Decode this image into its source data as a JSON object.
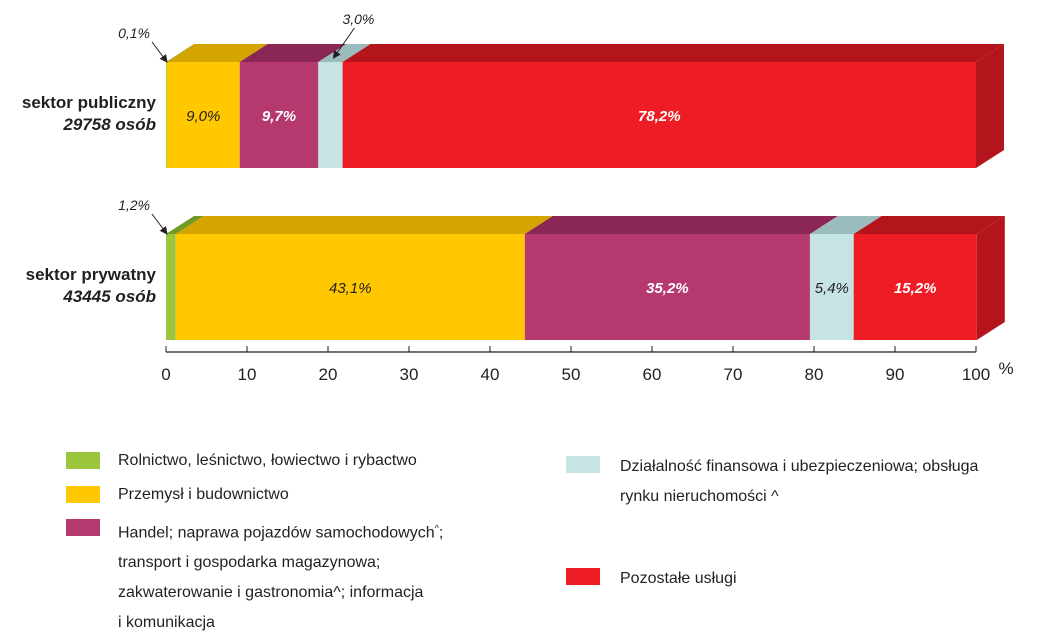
{
  "chart_data": {
    "type": "bar",
    "orientation": "horizontal",
    "stacked": true,
    "style": "3d",
    "x_range": [
      0,
      100
    ],
    "x_ticks": [
      "0",
      "10",
      "20",
      "30",
      "40",
      "50",
      "60",
      "70",
      "80",
      "90",
      "100"
    ],
    "x_unit": "%",
    "categories": [
      {
        "label": "sektor publiczny",
        "sublabel": "29758 osób"
      },
      {
        "label": "sektor prywatny",
        "sublabel": "43445 osób"
      }
    ],
    "series": [
      {
        "name": "Rolnictwo, leśnictwo, łowiectwo i rybactwo",
        "color": "#9bc53d",
        "side_color": "#6f9a25",
        "values": [
          0.1,
          1.2
        ],
        "labels": [
          "0,1%",
          "1,2%"
        ]
      },
      {
        "name": "Przemysł i budownictwo",
        "color": "#ffc800",
        "side_color": "#d4a500",
        "values": [
          9.0,
          43.1
        ],
        "labels": [
          "9,0%",
          "43,1%"
        ]
      },
      {
        "name": "Handel; naprawa pojazdów samochodowych; transport i gospodarka magazynowa; zakwaterowanie i gastronomia; informacja i komunikacja",
        "color": "#b5396f",
        "side_color": "#8a2754",
        "values": [
          9.7,
          35.2
        ],
        "labels": [
          "9,7%",
          "35,2%"
        ]
      },
      {
        "name": "Działalność finansowa i ubezpieczeniowa; obsługa rynku nieruchomości",
        "color": "#c6e4e4",
        "side_color": "#9bbcbc",
        "values": [
          3.0,
          5.4
        ],
        "labels": [
          "3,0%",
          "5,4%"
        ]
      },
      {
        "name": "Pozostałe usługi",
        "color": "#ee1c25",
        "side_color": "#b4141c",
        "values": [
          78.2,
          15.2
        ],
        "labels": [
          "78,2%",
          "15,2%"
        ]
      }
    ]
  },
  "legend": {
    "items": [
      {
        "text": "Rolnictwo, leśnictwo, łowiectwo i rybactwo",
        "color": "#9bc53d"
      },
      {
        "text": "Przemysł i budownictwo",
        "color": "#ffc800"
      },
      {
        "text": "Handel; naprawa pojazdów samochodowych",
        "sup": "^",
        "text_cont": ";\ntransport i gospodarka magazynowa;\nzakwaterowanie i  gastronomia^; informacja\ni komunikacja",
        "color": "#b5396f"
      },
      {
        "text": "Działalność finansowa i ubezpieczeniowa; obsługa\nrynku nieruchomości ^",
        "color": "#c6e4e4"
      },
      {
        "text": "Pozostałe usługi",
        "color": "#ee1c25"
      }
    ]
  }
}
